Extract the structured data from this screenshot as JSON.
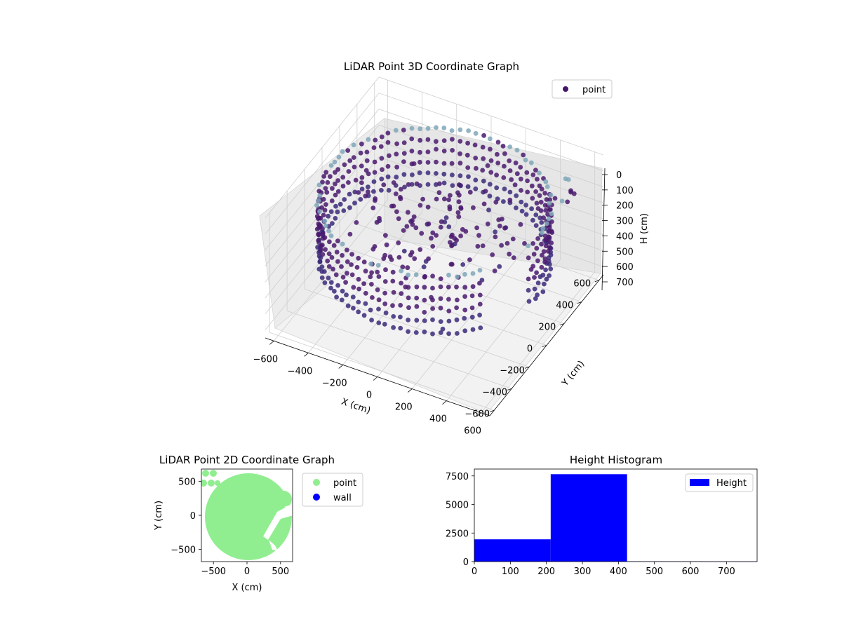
{
  "chart_data": [
    {
      "type": "scatter",
      "projection": "3d",
      "title": "LiDAR Point 3D Coordinate Graph",
      "xlabel": "X (cm)",
      "ylabel": "Y (cm)",
      "zlabel": "H (cm)",
      "xlim": [
        -650,
        650
      ],
      "ylim": [
        -650,
        650
      ],
      "zlim": [
        750,
        0
      ],
      "zaxis_inverted": true,
      "x_ticks": [
        -600,
        -400,
        -200,
        0,
        200,
        400,
        600
      ],
      "y_ticks": [
        -600,
        -400,
        -200,
        0,
        200,
        400,
        600
      ],
      "z_ticks": [
        0,
        100,
        200,
        300,
        400,
        500,
        600,
        700
      ],
      "legend": [
        "point"
      ],
      "legend_position": "upper-right",
      "colormap": "viridis",
      "grid": true,
      "description_of_data": "ring-shaped wall of points around radius ~600 cm spanning heights ~100-450 cm plus an interior cluster",
      "series": [
        {
          "name": "point",
          "ring_radius_cm": 600,
          "height_range_cm": [
            100,
            450
          ],
          "marker_color": "#46166b",
          "sample_points": [
            {
              "x": -580,
              "y": 100,
              "h": 200
            },
            {
              "x": 0,
              "y": -600,
              "h": 350
            },
            {
              "x": 580,
              "y": -100,
              "h": 300
            },
            {
              "x": 0,
              "y": 600,
              "h": 150
            },
            {
              "x": -100,
              "y": 100,
              "h": 250
            },
            {
              "x": 150,
              "y": -200,
              "h": 700
            }
          ]
        }
      ]
    },
    {
      "type": "scatter",
      "title": "LiDAR Point 2D Coordinate Graph",
      "xlabel": "X (cm)",
      "ylabel": "Y (cm)",
      "xlim": [
        -680,
        680
      ],
      "ylim": [
        -680,
        680
      ],
      "x_ticks": [
        -500,
        0,
        500
      ],
      "y_ticks": [
        -500,
        0,
        500
      ],
      "legend_position": "outside-right",
      "series": [
        {
          "name": "point",
          "color": "#90ee90",
          "disk_radius_cm": 620
        },
        {
          "name": "wall",
          "color": "#0000ff",
          "points": []
        }
      ]
    },
    {
      "type": "bar",
      "title": "Height Histogram",
      "xlabel": "",
      "ylabel": "",
      "xlim": [
        0,
        785
      ],
      "ylim": [
        0,
        8100
      ],
      "x_ticks": [
        0,
        100,
        200,
        300,
        400,
        500,
        600,
        700
      ],
      "y_ticks": [
        0,
        2500,
        5000,
        7500
      ],
      "legend": [
        "Height"
      ],
      "legend_position": "upper-right",
      "color": "#0000ff",
      "bins": [
        {
          "start": 0,
          "end": 212,
          "count": 1950
        },
        {
          "start": 212,
          "end": 424,
          "count": 7650
        },
        {
          "start": 424,
          "end": 636,
          "count": 25
        },
        {
          "start": 636,
          "end": 785,
          "count": 5
        }
      ]
    }
  ]
}
